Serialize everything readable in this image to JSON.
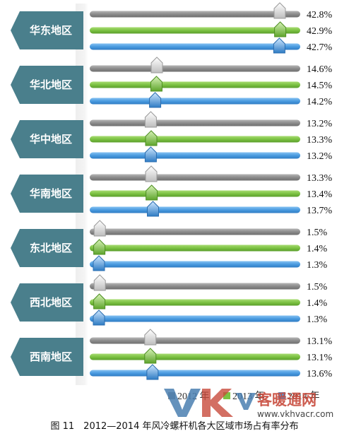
{
  "chart_data": {
    "type": "bar",
    "xlim": [
      0,
      50
    ],
    "series": [
      {
        "name": "2012 年",
        "color": "#8c8c8c"
      },
      {
        "name": "2013 年",
        "color": "#7cc243"
      },
      {
        "name": "2014 年",
        "color": "#4a9be0"
      }
    ],
    "categories": [
      "华东地区",
      "华北地区",
      "华中地区",
      "华南地区",
      "东北地区",
      "西北地区",
      "西南地区"
    ],
    "values": [
      [
        42.8,
        42.9,
        42.7
      ],
      [
        14.6,
        14.5,
        14.2
      ],
      [
        13.2,
        13.3,
        13.2
      ],
      [
        13.3,
        13.4,
        13.7
      ],
      [
        1.5,
        1.4,
        1.3
      ],
      [
        1.5,
        1.4,
        1.3
      ],
      [
        13.1,
        13.1,
        13.6
      ]
    ],
    "value_labels": [
      [
        "42.8%",
        "42.9%",
        "42.7%"
      ],
      [
        "14.6%",
        "14.5%",
        "14.2%"
      ],
      [
        "13.2%",
        "13.3%",
        "13.2%"
      ],
      [
        "13.3%",
        "13.4%",
        "13.7%"
      ],
      [
        "1.5%",
        "1.4%",
        "1.3%"
      ],
      [
        "1.5%",
        "1.4%",
        "1.3%"
      ],
      [
        "13.1%",
        "13.1%",
        "13.6%"
      ]
    ],
    "legend_position": "bottom",
    "region_color": "#4a7f8c"
  },
  "caption": "图 11　2012—2014 年风冷螺杆机各大区域市场占有率分布",
  "watermark": {
    "text": "客暖通网",
    "url": "www.vkhvacr.com"
  }
}
